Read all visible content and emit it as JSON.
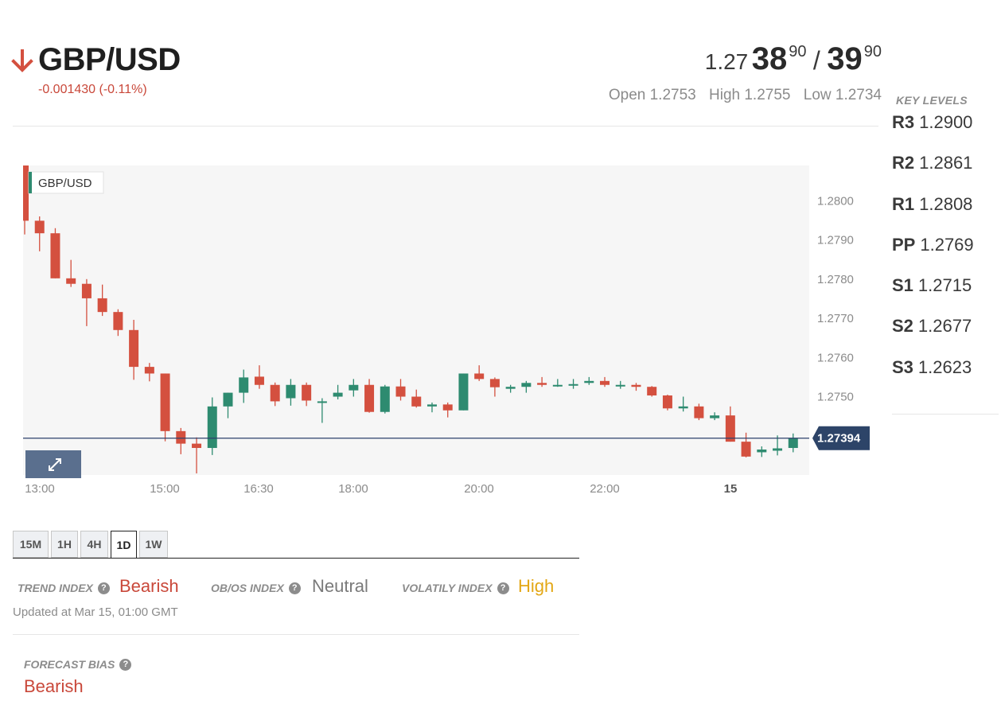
{
  "header": {
    "symbol": "GBP/USD",
    "direction": "down",
    "change": "-0.001430 (-0.11%)",
    "down_color": "#d4503f",
    "up_color": "#2e8b70"
  },
  "quote": {
    "bid_prefix": "1.27",
    "bid_big": "38",
    "bid_small": "90",
    "separator": "/",
    "ask_big": "39",
    "ask_small": "90",
    "open": "Open 1.2753",
    "high": "High 1.2755",
    "low": "Low 1.2734"
  },
  "key_levels": {
    "title": "KEY LEVELS",
    "items": [
      {
        "name": "R3",
        "value": "1.2900"
      },
      {
        "name": "R2",
        "value": "1.2861"
      },
      {
        "name": "R1",
        "value": "1.2808"
      },
      {
        "name": "PP",
        "value": "1.2769"
      },
      {
        "name": "S1",
        "value": "1.2715"
      },
      {
        "name": "S2",
        "value": "1.2677"
      },
      {
        "name": "S3",
        "value": "1.2623"
      }
    ]
  },
  "chart": {
    "legend": "GBP/USD",
    "current_price": "1.27394",
    "current_price_value": 1.27394,
    "y_ticks": [
      "1.2800",
      "1.2790",
      "1.2780",
      "1.2770",
      "1.2760",
      "1.2750"
    ],
    "x_ticks": [
      "13:00",
      "15:00",
      "16:30",
      "18:00",
      "20:00",
      "22:00",
      "15"
    ],
    "expand_icon": "expand-icon"
  },
  "chart_data": {
    "type": "candlestick",
    "title": "GBP/USD",
    "xlabel": "",
    "ylabel": "",
    "ylim": [
      1.273,
      1.2809
    ],
    "x_ticks": [
      "13:00",
      "15:00",
      "16:30",
      "18:00",
      "20:00",
      "22:00",
      "15"
    ],
    "y_ticks": [
      1.28,
      1.279,
      1.278,
      1.277,
      1.276,
      1.275
    ],
    "current_price": 1.27394,
    "grid": false,
    "candles": [
      {
        "o": 1.28091,
        "h": 1.28091,
        "l": 1.27914,
        "c": 1.27949
      },
      {
        "o": 1.27949,
        "h": 1.2796,
        "l": 1.27871,
        "c": 1.27917
      },
      {
        "o": 1.27917,
        "h": 1.2793,
        "l": 1.27802,
        "c": 1.27802
      },
      {
        "o": 1.27802,
        "h": 1.27849,
        "l": 1.2778,
        "c": 1.27788
      },
      {
        "o": 1.27788,
        "h": 1.278,
        "l": 1.2768,
        "c": 1.27751
      },
      {
        "o": 1.27751,
        "h": 1.27786,
        "l": 1.27706,
        "c": 1.27716
      },
      {
        "o": 1.27716,
        "h": 1.27723,
        "l": 1.27655,
        "c": 1.2767
      },
      {
        "o": 1.2767,
        "h": 1.27696,
        "l": 1.27543,
        "c": 1.27576
      },
      {
        "o": 1.27576,
        "h": 1.27586,
        "l": 1.27539,
        "c": 1.27559
      },
      {
        "o": 1.27559,
        "h": 1.27559,
        "l": 1.27386,
        "c": 1.27412
      },
      {
        "o": 1.27412,
        "h": 1.2742,
        "l": 1.27353,
        "c": 1.2738
      },
      {
        "o": 1.2738,
        "h": 1.27396,
        "l": 1.27304,
        "c": 1.27369
      },
      {
        "o": 1.27369,
        "h": 1.27498,
        "l": 1.27351,
        "c": 1.27475
      },
      {
        "o": 1.27475,
        "h": 1.2751,
        "l": 1.27445,
        "c": 1.2751
      },
      {
        "o": 1.2751,
        "h": 1.27569,
        "l": 1.27484,
        "c": 1.27549
      },
      {
        "o": 1.27551,
        "h": 1.2758,
        "l": 1.2752,
        "c": 1.2753
      },
      {
        "o": 1.2753,
        "h": 1.27536,
        "l": 1.27476,
        "c": 1.27488
      },
      {
        "o": 1.27496,
        "h": 1.27545,
        "l": 1.27477,
        "c": 1.2753
      },
      {
        "o": 1.2753,
        "h": 1.27536,
        "l": 1.27476,
        "c": 1.2749
      },
      {
        "o": 1.27488,
        "h": 1.27496,
        "l": 1.27433,
        "c": 1.27488
      },
      {
        "o": 1.275,
        "h": 1.2753,
        "l": 1.27493,
        "c": 1.2751
      },
      {
        "o": 1.27516,
        "h": 1.27545,
        "l": 1.275,
        "c": 1.2753
      },
      {
        "o": 1.2753,
        "h": 1.27545,
        "l": 1.27459,
        "c": 1.27461
      },
      {
        "o": 1.27461,
        "h": 1.2753,
        "l": 1.27457,
        "c": 1.27526
      },
      {
        "o": 1.27526,
        "h": 1.27545,
        "l": 1.2749,
        "c": 1.275
      },
      {
        "o": 1.275,
        "h": 1.27518,
        "l": 1.27472,
        "c": 1.27475
      },
      {
        "o": 1.27475,
        "h": 1.27485,
        "l": 1.2746,
        "c": 1.2748
      },
      {
        "o": 1.2748,
        "h": 1.27485,
        "l": 1.27447,
        "c": 1.27465
      },
      {
        "o": 1.27465,
        "h": 1.27559,
        "l": 1.27465,
        "c": 1.27559
      },
      {
        "o": 1.27559,
        "h": 1.2758,
        "l": 1.2754,
        "c": 1.27545
      },
      {
        "o": 1.27545,
        "h": 1.27549,
        "l": 1.275,
        "c": 1.27524
      },
      {
        "o": 1.2752,
        "h": 1.2753,
        "l": 1.2751,
        "c": 1.27525
      },
      {
        "o": 1.27525,
        "h": 1.2754,
        "l": 1.2751,
        "c": 1.27535
      },
      {
        "o": 1.27535,
        "h": 1.2755,
        "l": 1.27525,
        "c": 1.2753
      },
      {
        "o": 1.2753,
        "h": 1.27545,
        "l": 1.27525,
        "c": 1.2753
      },
      {
        "o": 1.2753,
        "h": 1.27545,
        "l": 1.2752,
        "c": 1.27532
      },
      {
        "o": 1.27535,
        "h": 1.2755,
        "l": 1.2753,
        "c": 1.2754
      },
      {
        "o": 1.2754,
        "h": 1.2755,
        "l": 1.27525,
        "c": 1.2753
      },
      {
        "o": 1.2753,
        "h": 1.2754,
        "l": 1.2752,
        "c": 1.2753
      },
      {
        "o": 1.2753,
        "h": 1.27535,
        "l": 1.27515,
        "c": 1.27525
      },
      {
        "o": 1.27525,
        "h": 1.27527,
        "l": 1.275,
        "c": 1.27503
      },
      {
        "o": 1.27503,
        "h": 1.27505,
        "l": 1.27465,
        "c": 1.2747
      },
      {
        "o": 1.2747,
        "h": 1.275,
        "l": 1.27462,
        "c": 1.27475
      },
      {
        "o": 1.27475,
        "h": 1.27482,
        "l": 1.2744,
        "c": 1.27445
      },
      {
        "o": 1.27445,
        "h": 1.2746,
        "l": 1.2744,
        "c": 1.27452
      },
      {
        "o": 1.27452,
        "h": 1.27475,
        "l": 1.27385,
        "c": 1.27385
      },
      {
        "o": 1.27385,
        "h": 1.27408,
        "l": 1.27345,
        "c": 1.27347
      },
      {
        "o": 1.27358,
        "h": 1.27373,
        "l": 1.27346,
        "c": 1.27365
      },
      {
        "o": 1.27362,
        "h": 1.27401,
        "l": 1.2735,
        "c": 1.27368
      },
      {
        "o": 1.27369,
        "h": 1.27406,
        "l": 1.27358,
        "c": 1.27394
      }
    ]
  },
  "timeframes": [
    {
      "label": "15M",
      "active": false
    },
    {
      "label": "1H",
      "active": false
    },
    {
      "label": "4H",
      "active": false
    },
    {
      "label": "1D",
      "active": true
    },
    {
      "label": "1W",
      "active": false
    }
  ],
  "indices": {
    "trend_label": "TREND INDEX",
    "trend_value": "Bearish",
    "trend_color": "#c9483a",
    "obos_label": "OB/OS INDEX",
    "obos_value": "Neutral",
    "obos_color": "#7a7a7a",
    "volatility_label": "VOLATILY INDEX",
    "volatility_value": "High",
    "volatility_color": "#e3a715",
    "help_icon": "question-circle-icon",
    "updated": "Updated at Mar 15, 01:00 GMT"
  },
  "forecast": {
    "label": "FORECAST BIAS",
    "value": "Bearish",
    "color": "#c9483a"
  }
}
